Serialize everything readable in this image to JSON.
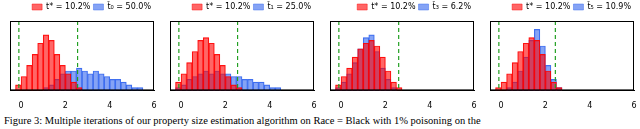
{
  "chart_data": [
    {
      "type": "histogram",
      "bins": [
        -0.5,
        -0.25,
        0,
        0.25,
        0.5,
        0.75,
        1,
        1.25,
        1.5,
        1.75,
        2,
        2.25,
        2.5,
        2.75,
        3,
        3.25,
        3.5,
        3.75,
        4,
        4.25,
        4.5,
        4.75,
        5,
        5.25,
        5.5,
        5.75,
        6
      ],
      "series": [
        {
          "name": "t* = 10.2%",
          "color": "#ff0000",
          "values": [
            0,
            2,
            5,
            9,
            13,
            17,
            20,
            18,
            13,
            9,
            6,
            3,
            1,
            0,
            0,
            0,
            0,
            0,
            0,
            0,
            0,
            0,
            0,
            0,
            0,
            0
          ]
        },
        {
          "name": "t̂₀ = 50.0%",
          "color": "#3366ee",
          "values": [
            0,
            0,
            0,
            0,
            0,
            0,
            1,
            2,
            4,
            6,
            7,
            7,
            8,
            7,
            6,
            7,
            6,
            5,
            4,
            4,
            3,
            2,
            1,
            1,
            0,
            0
          ]
        }
      ],
      "xlim": [
        -0.5,
        6
      ],
      "xticks": [
        0,
        2,
        4,
        6
      ],
      "ylim": [
        0,
        25
      ],
      "tick_labels": "x",
      "vlines": [
        -0.1,
        2.55
      ],
      "legend": "upper right",
      "grid": false
    },
    {
      "type": "histogram",
      "bins": [
        -0.5,
        -0.25,
        0,
        0.25,
        0.5,
        0.75,
        1,
        1.25,
        1.5,
        1.75,
        2,
        2.25,
        2.5,
        2.75,
        3,
        3.25,
        3.5,
        3.75,
        4,
        4.25,
        4.5,
        4.75,
        5,
        5.25,
        5.5,
        5.75,
        6
      ],
      "series": [
        {
          "name": "t* = 10.2%",
          "color": "#ff0000",
          "values": [
            0,
            3,
            6,
            10,
            14,
            18,
            19,
            17,
            13,
            9,
            5,
            2,
            1,
            0,
            0,
            0,
            0,
            0,
            0,
            0,
            0,
            0,
            0,
            0,
            0,
            0
          ]
        },
        {
          "name": "t̂₁ = 25.0%",
          "color": "#3366ee",
          "values": [
            0,
            1,
            2,
            4,
            5,
            6,
            7,
            6,
            7,
            6,
            6,
            5,
            5,
            4,
            4,
            3,
            3,
            2,
            1,
            1,
            0,
            0,
            0,
            0,
            0,
            0
          ]
        }
      ],
      "xlim": [
        -0.5,
        6
      ],
      "xticks": [
        0,
        2,
        4,
        6
      ],
      "ylim": [
        0,
        25
      ],
      "tick_labels": "x",
      "vlines": [
        -0.1,
        2.55
      ],
      "legend": "upper right",
      "grid": false
    },
    {
      "type": "histogram",
      "bins": [
        -0.5,
        -0.25,
        0,
        0.25,
        0.5,
        0.75,
        1,
        1.25,
        1.5,
        1.75,
        2,
        2.25,
        2.5,
        2.75,
        3,
        3.25,
        3.5,
        3.75,
        4,
        4.25,
        4.5,
        4.75,
        5,
        5.25,
        5.5,
        5.75,
        6
      ],
      "series": [
        {
          "name": "t* = 10.2%",
          "color": "#ff0000",
          "values": [
            0,
            2,
            5,
            8,
            12,
            15,
            17,
            18,
            16,
            12,
            7,
            3,
            1,
            0,
            0,
            0,
            0,
            0,
            0,
            0,
            0,
            0,
            0,
            0,
            0,
            0
          ]
        },
        {
          "name": "t̂₃ = 6.2%",
          "color": "#3366ee",
          "values": [
            0,
            1,
            3,
            6,
            10,
            15,
            19,
            20,
            14,
            8,
            4,
            1,
            0,
            0,
            0,
            0,
            0,
            0,
            0,
            0,
            0,
            0,
            0,
            0,
            0,
            0
          ]
        }
      ],
      "xlim": [
        -0.5,
        6
      ],
      "xticks": [
        0,
        2,
        4,
        6
      ],
      "ylim": [
        0,
        25
      ],
      "tick_labels": "x",
      "vlines": [
        -0.1,
        2.6
      ],
      "legend": "upper right",
      "grid": false
    },
    {
      "type": "histogram",
      "bins": [
        -0.5,
        -0.25,
        0,
        0.25,
        0.5,
        0.75,
        1,
        1.25,
        1.5,
        1.75,
        2,
        2.25,
        2.5,
        2.75,
        3,
        3.25,
        3.5,
        3.75,
        4,
        4.25,
        4.5,
        4.75,
        5,
        5.25,
        5.5,
        5.75,
        6
      ],
      "series": [
        {
          "name": "t* = 10.2%",
          "color": "#ff0000",
          "values": [
            0,
            1,
            3,
            6,
            10,
            14,
            17,
            19,
            18,
            13,
            7,
            3,
            1,
            0,
            0,
            0,
            0,
            0,
            0,
            0,
            0,
            0,
            0,
            0,
            0,
            0
          ]
        },
        {
          "name": "t̂₅ = 10.9%",
          "color": "#3366ee",
          "values": [
            0,
            0,
            0,
            1,
            3,
            7,
            12,
            18,
            22,
            16,
            9,
            4,
            1,
            0,
            0,
            0,
            0,
            0,
            0,
            0,
            0,
            0,
            0,
            0,
            0,
            0
          ]
        }
      ],
      "xlim": [
        -0.5,
        6
      ],
      "xticks": [
        0,
        2,
        4,
        6
      ],
      "ylim": [
        0,
        25
      ],
      "tick_labels": "x",
      "vlines": [
        -0.1,
        2.45
      ],
      "legend": "upper right",
      "grid": false
    }
  ],
  "caption": "Figure 3: Multiple iterations of our property size estimation algorithm on Race = Black with 1% poisoning on the"
}
